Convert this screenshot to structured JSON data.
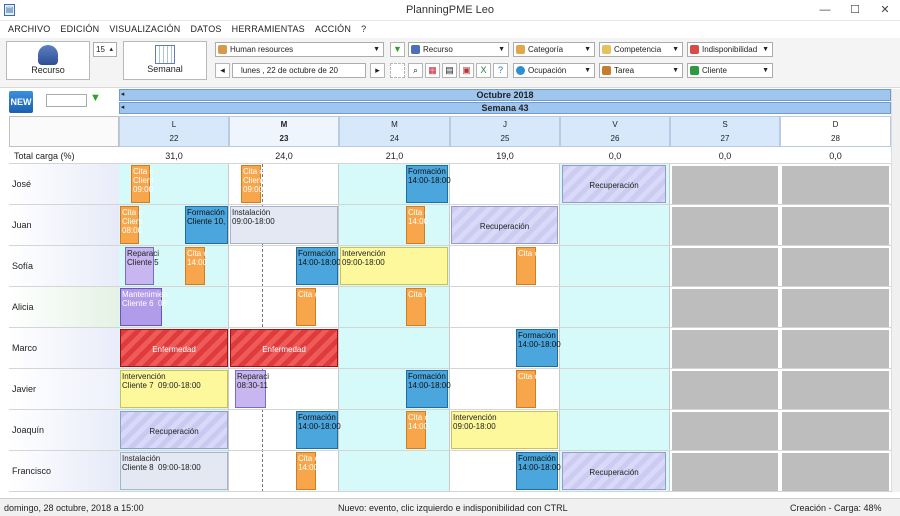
{
  "window": {
    "title": "PlanningPME Leo",
    "minimize": "—",
    "maximize": "☐",
    "close": "✕"
  },
  "menu": [
    "ARCHIVO",
    "EDICIÓN",
    "VISUALIZACIÓN",
    "DATOS",
    "HERRAMIENTAS",
    "ACCIÓN",
    "?"
  ],
  "toolbar": {
    "recurso_label": "Recurso",
    "zoom_value": "15",
    "semanal_label": "Semanal",
    "resource_filter": "Human resources",
    "resource_dd": "Recurso",
    "categoria": "Categoría",
    "competencia": "Competencia",
    "indisponibilidad": "Indisponibilidad",
    "date_day": "lunes",
    "date_num": ", 22 de",
    "date_month": "octubre",
    "date_year": "de 20",
    "ocupacion": "Ocupación",
    "tarea": "Tarea",
    "cliente": "Cliente"
  },
  "left": {
    "new_label": "NEW"
  },
  "calendar": {
    "month": "Octubre 2018",
    "week": "Semana 43",
    "days": [
      {
        "letter": "L",
        "num": "22",
        "load": "31,0"
      },
      {
        "letter": "M",
        "num": "23",
        "load": "24,0"
      },
      {
        "letter": "M",
        "num": "24",
        "load": "21,0"
      },
      {
        "letter": "J",
        "num": "25",
        "load": "19,0"
      },
      {
        "letter": "V",
        "num": "26",
        "load": "0,0"
      },
      {
        "letter": "S",
        "num": "27",
        "load": "0,0"
      },
      {
        "letter": "D",
        "num": "28",
        "load": "0,0"
      }
    ],
    "total_label": "Total carga (%)",
    "resources": [
      "José",
      "Juan",
      "Sofía",
      "Alicia",
      "Marco",
      "Javier",
      "Joaquín",
      "Francisco"
    ]
  },
  "events": {
    "cita": "Cita c",
    "cita_cliente": "Cita c\nClient\n09:00",
    "cita_cliente2": "Cita c\nClient\n08:00",
    "cita_14": "Cita c\n14:00",
    "formacion": "Formación\n14:00-18:00",
    "formacion_cli": "Formación\nCliente 10,",
    "instalacion": "Instalación\n09:00-18:00",
    "instalacion_cli": "Instalación\nCliente 8  09:00-18:00",
    "intervencion": "Intervención\n09:00-18:00",
    "intervencion_cli": "Intervención\nCliente 7  09:00-18:00",
    "recuperacion": "Recuperación",
    "reparacion": "Reparaci\nCliente 5",
    "reparacion2": "Reparaci\n08:30-11",
    "mantenimiento": "Mantenimien\nCliente 6  08",
    "enfermedad": "Enfermedad"
  },
  "status": {
    "left": "domingo, 28 octubre, 2018 a 15:00",
    "center": "Nuevo: evento, clic izquierdo e indisponibilidad con CTRL",
    "right": "Creación - Carga: 48%"
  },
  "colors": {
    "header_blue": "#9fc6ef",
    "weekday_bg": "#d6f9f9",
    "weekend_bg": "#bdbdbd",
    "cita": "#f7a64b",
    "formacion": "#4aa6dc",
    "intervencion": "#fdf89c"
  }
}
